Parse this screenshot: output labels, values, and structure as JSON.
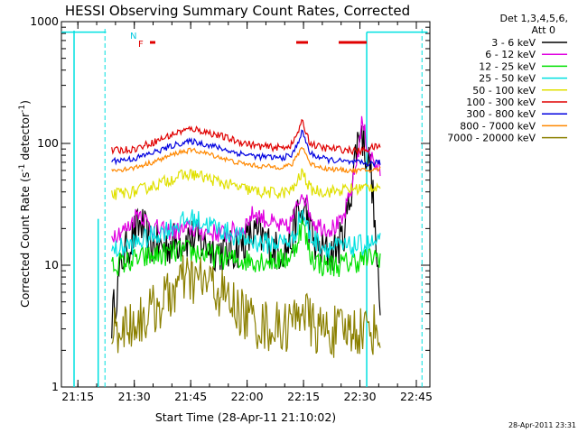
{
  "chart_data": {
    "type": "line",
    "title": "HESSI Observing Summary Count Rates, Corrected",
    "xlabel": "Start Time (28-Apr-11 21:10:02)",
    "ylabel_main": "Corrected Count Rate (s",
    "ylabel_sup1": "-1",
    "ylabel_mid": " detector",
    "ylabel_sup2": "-1",
    "ylabel_end": ")",
    "ylabel": "Corrected Count Rate (s-1 detector-1)",
    "yscale": "log",
    "ylim": [
      1,
      1000
    ],
    "xlim": [
      21.177,
      22.81
    ],
    "x_unit": "hours (UT)",
    "x_ticks": [
      {
        "value": 21.25,
        "label": "21:15"
      },
      {
        "value": 21.5,
        "label": "21:30"
      },
      {
        "value": 21.75,
        "label": "21:45"
      },
      {
        "value": 22.0,
        "label": "22:00"
      },
      {
        "value": 22.25,
        "label": "22:15"
      },
      {
        "value": 22.5,
        "label": "22:30"
      },
      {
        "value": 22.75,
        "label": "22:45"
      }
    ],
    "y_ticks": [
      {
        "value": 1,
        "label": "1"
      },
      {
        "value": 10,
        "label": "10"
      },
      {
        "value": 100,
        "label": "100"
      },
      {
        "value": 1000,
        "label": "1000"
      }
    ],
    "legend_header": [
      "Det 1,3,4,5,6,",
      "Att 0"
    ],
    "legend_placement": "right, outside plot",
    "series": [
      {
        "name": "3 - 6 keV",
        "color": "#000000",
        "noise": 0.18,
        "points": [
          [
            21.4,
            3.5
          ],
          [
            21.45,
            12
          ],
          [
            21.5,
            18
          ],
          [
            21.53,
            22
          ],
          [
            21.57,
            15
          ],
          [
            21.62,
            14
          ],
          [
            21.7,
            16
          ],
          [
            21.75,
            17
          ],
          [
            21.8,
            15
          ],
          [
            21.88,
            13
          ],
          [
            21.93,
            13
          ],
          [
            21.98,
            15
          ],
          [
            22.03,
            18
          ],
          [
            22.08,
            16
          ],
          [
            22.13,
            13
          ],
          [
            22.18,
            14
          ],
          [
            22.2,
            17
          ],
          [
            22.22,
            25
          ],
          [
            22.26,
            28
          ],
          [
            22.29,
            16
          ],
          [
            22.32,
            13
          ],
          [
            22.38,
            13
          ],
          [
            22.42,
            16
          ],
          [
            22.45,
            30
          ],
          [
            22.48,
            80
          ],
          [
            22.5,
            140
          ],
          [
            22.52,
            95
          ],
          [
            22.55,
            60
          ],
          [
            22.57,
            15
          ],
          [
            22.59,
            3.5
          ]
        ]
      },
      {
        "name": "6 - 12 keV",
        "color": "#e000e0",
        "noise": 0.08,
        "points": [
          [
            21.4,
            18
          ],
          [
            21.47,
            20
          ],
          [
            21.52,
            28
          ],
          [
            21.56,
            22
          ],
          [
            21.62,
            19
          ],
          [
            21.7,
            19
          ],
          [
            21.75,
            20
          ],
          [
            21.8,
            19
          ],
          [
            21.9,
            18
          ],
          [
            21.98,
            20
          ],
          [
            22.03,
            27
          ],
          [
            22.08,
            24
          ],
          [
            22.13,
            21
          ],
          [
            22.18,
            20
          ],
          [
            22.21,
            26
          ],
          [
            22.245,
            42
          ],
          [
            22.27,
            30
          ],
          [
            22.3,
            22
          ],
          [
            22.37,
            20
          ],
          [
            22.42,
            22
          ],
          [
            22.46,
            40
          ],
          [
            22.49,
            80
          ],
          [
            22.51,
            155
          ],
          [
            22.53,
            100
          ],
          [
            22.56,
            70
          ],
          [
            22.59,
            60
          ]
        ]
      },
      {
        "name": "12 - 25 keV",
        "color": "#00e000",
        "noise": 0.1,
        "points": [
          [
            21.4,
            10
          ],
          [
            21.5,
            11
          ],
          [
            21.6,
            12
          ],
          [
            21.7,
            13
          ],
          [
            21.75,
            13
          ],
          [
            21.85,
            12
          ],
          [
            21.95,
            11
          ],
          [
            22.05,
            11
          ],
          [
            22.15,
            11
          ],
          [
            22.2,
            12
          ],
          [
            22.245,
            22
          ],
          [
            22.28,
            12
          ],
          [
            22.33,
            10
          ],
          [
            22.4,
            10
          ],
          [
            22.5,
            11
          ],
          [
            22.59,
            12
          ]
        ]
      },
      {
        "name": "25 - 50 keV",
        "color": "#00e0e0",
        "noise": 0.09,
        "points": [
          [
            21.4,
            13
          ],
          [
            21.5,
            15
          ],
          [
            21.6,
            18
          ],
          [
            21.7,
            22
          ],
          [
            21.75,
            24
          ],
          [
            21.82,
            22
          ],
          [
            21.9,
            19
          ],
          [
            22.0,
            16
          ],
          [
            22.1,
            15
          ],
          [
            22.2,
            16
          ],
          [
            22.245,
            28
          ],
          [
            22.28,
            17
          ],
          [
            22.35,
            14
          ],
          [
            22.45,
            14
          ],
          [
            22.55,
            15
          ],
          [
            22.59,
            15
          ]
        ]
      },
      {
        "name": "50 - 100 keV",
        "color": "#e0e000",
        "noise": 0.05,
        "points": [
          [
            21.4,
            38
          ],
          [
            21.5,
            40
          ],
          [
            21.6,
            46
          ],
          [
            21.7,
            54
          ],
          [
            21.76,
            56
          ],
          [
            21.85,
            50
          ],
          [
            21.95,
            44
          ],
          [
            22.05,
            40
          ],
          [
            22.15,
            39
          ],
          [
            22.2,
            41
          ],
          [
            22.245,
            58
          ],
          [
            22.28,
            42
          ],
          [
            22.35,
            40
          ],
          [
            22.45,
            42
          ],
          [
            22.55,
            44
          ],
          [
            22.59,
            45
          ]
        ]
      },
      {
        "name": "100 - 300 keV",
        "color": "#e00000",
        "noise": 0.03,
        "points": [
          [
            21.4,
            87
          ],
          [
            21.5,
            90
          ],
          [
            21.6,
            105
          ],
          [
            21.7,
            125
          ],
          [
            21.76,
            132
          ],
          [
            21.85,
            120
          ],
          [
            21.95,
            105
          ],
          [
            22.05,
            95
          ],
          [
            22.15,
            92
          ],
          [
            22.2,
            98
          ],
          [
            22.245,
            150
          ],
          [
            22.28,
            100
          ],
          [
            22.33,
            92
          ],
          [
            22.4,
            90
          ],
          [
            22.45,
            88
          ],
          [
            22.5,
            86
          ],
          [
            22.55,
            92
          ],
          [
            22.59,
            95
          ]
        ]
      },
      {
        "name": "300 - 800 keV",
        "color": "#0000e0",
        "noise": 0.025,
        "points": [
          [
            21.4,
            72
          ],
          [
            21.5,
            75
          ],
          [
            21.6,
            86
          ],
          [
            21.7,
            100
          ],
          [
            21.76,
            104
          ],
          [
            21.85,
            95
          ],
          [
            21.95,
            84
          ],
          [
            22.05,
            78
          ],
          [
            22.15,
            76
          ],
          [
            22.2,
            80
          ],
          [
            22.245,
            125
          ],
          [
            22.28,
            82
          ],
          [
            22.35,
            74
          ],
          [
            22.45,
            70
          ],
          [
            22.55,
            68
          ],
          [
            22.59,
            70
          ]
        ]
      },
      {
        "name": "800 - 7000 keV",
        "color": "#ff8800",
        "noise": 0.02,
        "points": [
          [
            21.4,
            60
          ],
          [
            21.5,
            63
          ],
          [
            21.6,
            72
          ],
          [
            21.7,
            85
          ],
          [
            21.76,
            88
          ],
          [
            21.85,
            80
          ],
          [
            21.95,
            70
          ],
          [
            22.05,
            65
          ],
          [
            22.15,
            64
          ],
          [
            22.2,
            67
          ],
          [
            22.245,
            95
          ],
          [
            22.28,
            68
          ],
          [
            22.35,
            62
          ],
          [
            22.45,
            60
          ],
          [
            22.55,
            60
          ],
          [
            22.59,
            62
          ]
        ]
      },
      {
        "name": "7000 - 20000 keV",
        "color": "#8b8000",
        "noise": 0.22,
        "points": [
          [
            21.4,
            3
          ],
          [
            21.47,
            3.2
          ],
          [
            21.53,
            3.6
          ],
          [
            21.6,
            4.5
          ],
          [
            21.67,
            6
          ],
          [
            21.72,
            7.5
          ],
          [
            21.8,
            7.5
          ],
          [
            21.86,
            6.5
          ],
          [
            21.92,
            5
          ],
          [
            21.98,
            4
          ],
          [
            22.05,
            3.3
          ],
          [
            22.15,
            3
          ],
          [
            22.21,
            3.5
          ],
          [
            22.245,
            5
          ],
          [
            22.27,
            3.5
          ],
          [
            22.3,
            3
          ],
          [
            22.4,
            2.8
          ],
          [
            22.5,
            3
          ],
          [
            22.59,
            3
          ]
        ]
      }
    ],
    "flag_labels": [
      {
        "text": "N",
        "color": "#00c8e0"
      },
      {
        "text": "F",
        "color": "#e00000"
      }
    ]
  },
  "footer": {
    "timestamp": "28-Apr-2011 23:31"
  },
  "colors": {
    "background": "#ffffff",
    "axes": "#000000",
    "attenuator_marker": "#00e0e0",
    "flare_flag": "#e00000"
  }
}
